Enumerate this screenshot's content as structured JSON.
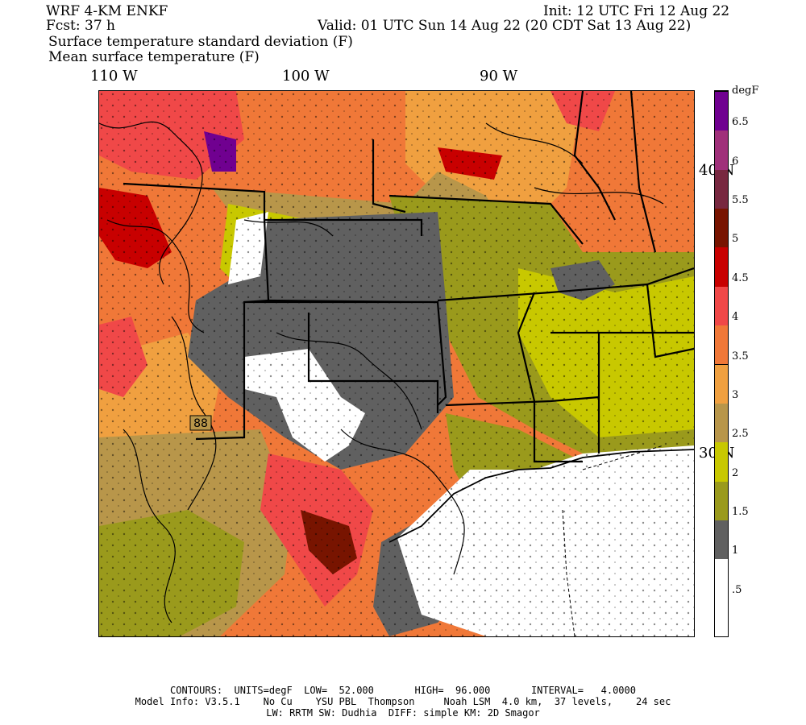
{
  "header": {
    "model": "WRF 4-KM ENKF",
    "fcst": "Fcst:   37 h",
    "init": "Init: 12 UTC Fri 12 Aug 22",
    "valid": "Valid: 01 UTC Sun 14 Aug 22 (20 CDT Sat 13 Aug 22)",
    "field1": "Surface temperature standard deviation (F)",
    "field2": "Mean surface temperature (F)"
  },
  "longitude_labels": [
    "110 W",
    "100 W",
    "90 W"
  ],
  "latitude_labels": [
    "40 N",
    "30 N"
  ],
  "map_annotation": "88",
  "legend": {
    "unit": "degF",
    "levels": [
      ".5",
      "1",
      "1.5",
      "2",
      "2.5",
      "3",
      "3.5",
      "4",
      "4.5",
      "5",
      "5.5",
      "6",
      "6.5"
    ],
    "colors": [
      "#ffffff",
      "#ffffff",
      "#606060",
      "#9a9a1c",
      "#c8c800",
      "#b8964a",
      "#f0a040",
      "#f07838",
      "#f04848",
      "#c80000",
      "#781400",
      "#782840",
      "#a0307a",
      "#700090"
    ]
  },
  "footer": {
    "line1": "CONTOURS:  UNITS=degF  LOW=  52.000       HIGH=  96.000       INTERVAL=   4.0000",
    "line2": "Model Info: V3.5.1    No Cu    YSU PBL  Thompson     Noah LSM  4.0 km,  37 levels,    24 sec",
    "line3": "LW: RRTM SW: Dudhia  DIFF: simple KM: 2D Smagor"
  }
}
